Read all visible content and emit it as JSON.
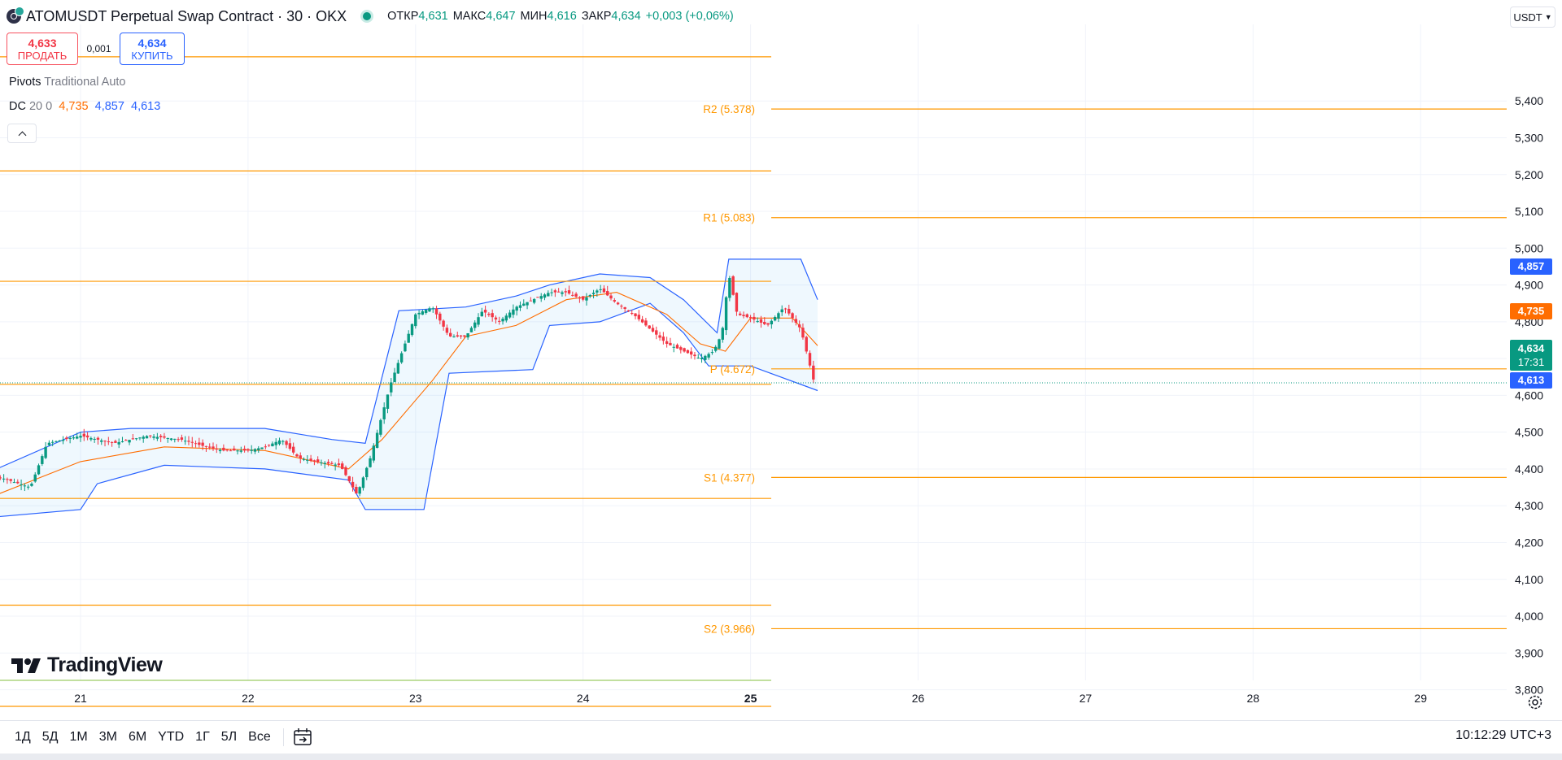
{
  "header": {
    "symbol_title": "ATOMUSDT Perpetual Swap Contract · 30 · OKX",
    "ohlc": [
      {
        "label": "ОТКР",
        "value": "4,631"
      },
      {
        "label": "МАКС",
        "value": "4,647"
      },
      {
        "label": "МИН",
        "value": "4,616"
      },
      {
        "label": "ЗАКР",
        "value": "4,634"
      }
    ],
    "change": "+0,003 (+0,06%)"
  },
  "trade": {
    "sell_price": "4,633",
    "sell_label": "ПРОДАТЬ",
    "spread": "0,001",
    "buy_price": "4,634",
    "buy_label": "КУПИТЬ"
  },
  "legends": {
    "pivots_name": "Pivots",
    "pivots_params": "Traditional Auto",
    "dc_name": "DC",
    "dc_params": "20 0",
    "dc_basis": "4,735",
    "dc_upper": "4,857",
    "dc_lower": "4,613"
  },
  "currency": "USDT",
  "price_tags": {
    "dc_upper": "4,857",
    "dc_basis": "4,735",
    "last_price": "4,634",
    "countdown": "17:31",
    "dc_lower": "4,613"
  },
  "colors": {
    "up": "#089981",
    "down": "#f23645",
    "pivot": "#ff9800",
    "dc_band": "#2962ff",
    "dc_basis": "#ff6d00"
  },
  "logo_text": "TradingView",
  "bottom_toolbar": {
    "ranges": [
      "1Д",
      "5Д",
      "1М",
      "3М",
      "6М",
      "YTD",
      "1Г",
      "5Л",
      "Все"
    ],
    "clock": "10:12:29 UTC+3",
    "calendar_icon": "calendar-goto-icon",
    "settings_icon": "settings-icon"
  },
  "chart_data": {
    "type": "candlestick",
    "title": "ATOMUSDT Perpetual Swap Contract · 30 · OKX",
    "x_ticks": [
      "21",
      "22",
      "23",
      "24",
      "25",
      "26",
      "27",
      "28",
      "29"
    ],
    "y_ticks": [
      "3,800",
      "3,900",
      "4,000",
      "4,100",
      "4,200",
      "4,300",
      "4,400",
      "4,500",
      "4,600",
      "4,700",
      "4,800",
      "4,900",
      "5,000",
      "5,100",
      "5,200",
      "5,300",
      "5,400"
    ],
    "ylim": [
      3.72,
      5.55
    ],
    "pivots": {
      "current": [
        {
          "label": "R2 (5.378)",
          "value": 5.378
        },
        {
          "label": "R1 (5.083)",
          "value": 5.083
        },
        {
          "label": "P (4.672)",
          "value": 4.672
        },
        {
          "label": "S1 (4.377)",
          "value": 4.377
        },
        {
          "label": "S2 (3.966)",
          "value": 3.966
        }
      ],
      "previous": [
        5.52,
        5.21,
        4.91,
        4.63,
        4.32,
        4.03,
        3.755
      ]
    },
    "price_path": [
      [
        20.5,
        4.38
      ],
      [
        20.7,
        4.35
      ],
      [
        20.8,
        4.47
      ],
      [
        21.0,
        4.49
      ],
      [
        21.2,
        4.47
      ],
      [
        21.4,
        4.49
      ],
      [
        21.6,
        4.48
      ],
      [
        21.75,
        4.46
      ],
      [
        21.85,
        4.45
      ],
      [
        22.0,
        4.45
      ],
      [
        22.1,
        4.46
      ],
      [
        22.2,
        4.48
      ],
      [
        22.3,
        4.43
      ],
      [
        22.4,
        4.42
      ],
      [
        22.55,
        4.41
      ],
      [
        22.65,
        4.33
      ],
      [
        22.73,
        4.43
      ],
      [
        22.85,
        4.63
      ],
      [
        23.0,
        4.82
      ],
      [
        23.1,
        4.84
      ],
      [
        23.2,
        4.76
      ],
      [
        23.3,
        4.76
      ],
      [
        23.4,
        4.83
      ],
      [
        23.5,
        4.8
      ],
      [
        23.6,
        4.84
      ],
      [
        23.7,
        4.86
      ],
      [
        23.8,
        4.88
      ],
      [
        23.9,
        4.88
      ],
      [
        24.0,
        4.86
      ],
      [
        24.1,
        4.89
      ],
      [
        24.2,
        4.85
      ],
      [
        24.3,
        4.82
      ],
      [
        24.4,
        4.78
      ],
      [
        24.5,
        4.74
      ],
      [
        24.6,
        4.72
      ],
      [
        24.7,
        4.7
      ],
      [
        24.78,
        4.72
      ],
      [
        24.83,
        4.77
      ],
      [
        24.87,
        4.93
      ],
      [
        24.92,
        4.82
      ],
      [
        25.0,
        4.81
      ],
      [
        25.1,
        4.79
      ],
      [
        25.2,
        4.84
      ],
      [
        25.3,
        4.78
      ],
      [
        25.38,
        4.634
      ]
    ],
    "donchian": {
      "upper": [
        [
          20.5,
          4.4
        ],
        [
          21.0,
          4.5
        ],
        [
          21.3,
          4.51
        ],
        [
          22.1,
          4.51
        ],
        [
          22.5,
          4.48
        ],
        [
          22.7,
          4.47
        ],
        [
          22.9,
          4.83
        ],
        [
          23.3,
          4.84
        ],
        [
          23.6,
          4.87
        ],
        [
          23.8,
          4.9
        ],
        [
          24.1,
          4.93
        ],
        [
          24.4,
          4.92
        ],
        [
          24.6,
          4.86
        ],
        [
          24.8,
          4.77
        ],
        [
          24.87,
          4.97
        ],
        [
          25.3,
          4.97
        ],
        [
          25.4,
          4.86
        ]
      ],
      "basis": [
        [
          20.5,
          4.33
        ],
        [
          21.0,
          4.42
        ],
        [
          21.5,
          4.46
        ],
        [
          22.1,
          4.45
        ],
        [
          22.6,
          4.4
        ],
        [
          22.8,
          4.48
        ],
        [
          23.1,
          4.64
        ],
        [
          23.3,
          4.76
        ],
        [
          23.6,
          4.79
        ],
        [
          23.9,
          4.86
        ],
        [
          24.2,
          4.88
        ],
        [
          24.5,
          4.82
        ],
        [
          24.7,
          4.74
        ],
        [
          24.85,
          4.72
        ],
        [
          25.0,
          4.81
        ],
        [
          25.25,
          4.81
        ],
        [
          25.4,
          4.735
        ]
      ],
      "lower": [
        [
          20.5,
          4.27
        ],
        [
          21.0,
          4.29
        ],
        [
          21.1,
          4.36
        ],
        [
          21.5,
          4.41
        ],
        [
          22.1,
          4.4
        ],
        [
          22.6,
          4.37
        ],
        [
          22.7,
          4.29
        ],
        [
          23.05,
          4.29
        ],
        [
          23.2,
          4.66
        ],
        [
          23.7,
          4.67
        ],
        [
          23.8,
          4.79
        ],
        [
          24.1,
          4.8
        ],
        [
          24.4,
          4.85
        ],
        [
          24.6,
          4.77
        ],
        [
          24.75,
          4.68
        ],
        [
          25.0,
          4.68
        ],
        [
          25.4,
          4.613
        ]
      ]
    },
    "last_price": 4.634,
    "grid": true,
    "legend": "top-left"
  }
}
